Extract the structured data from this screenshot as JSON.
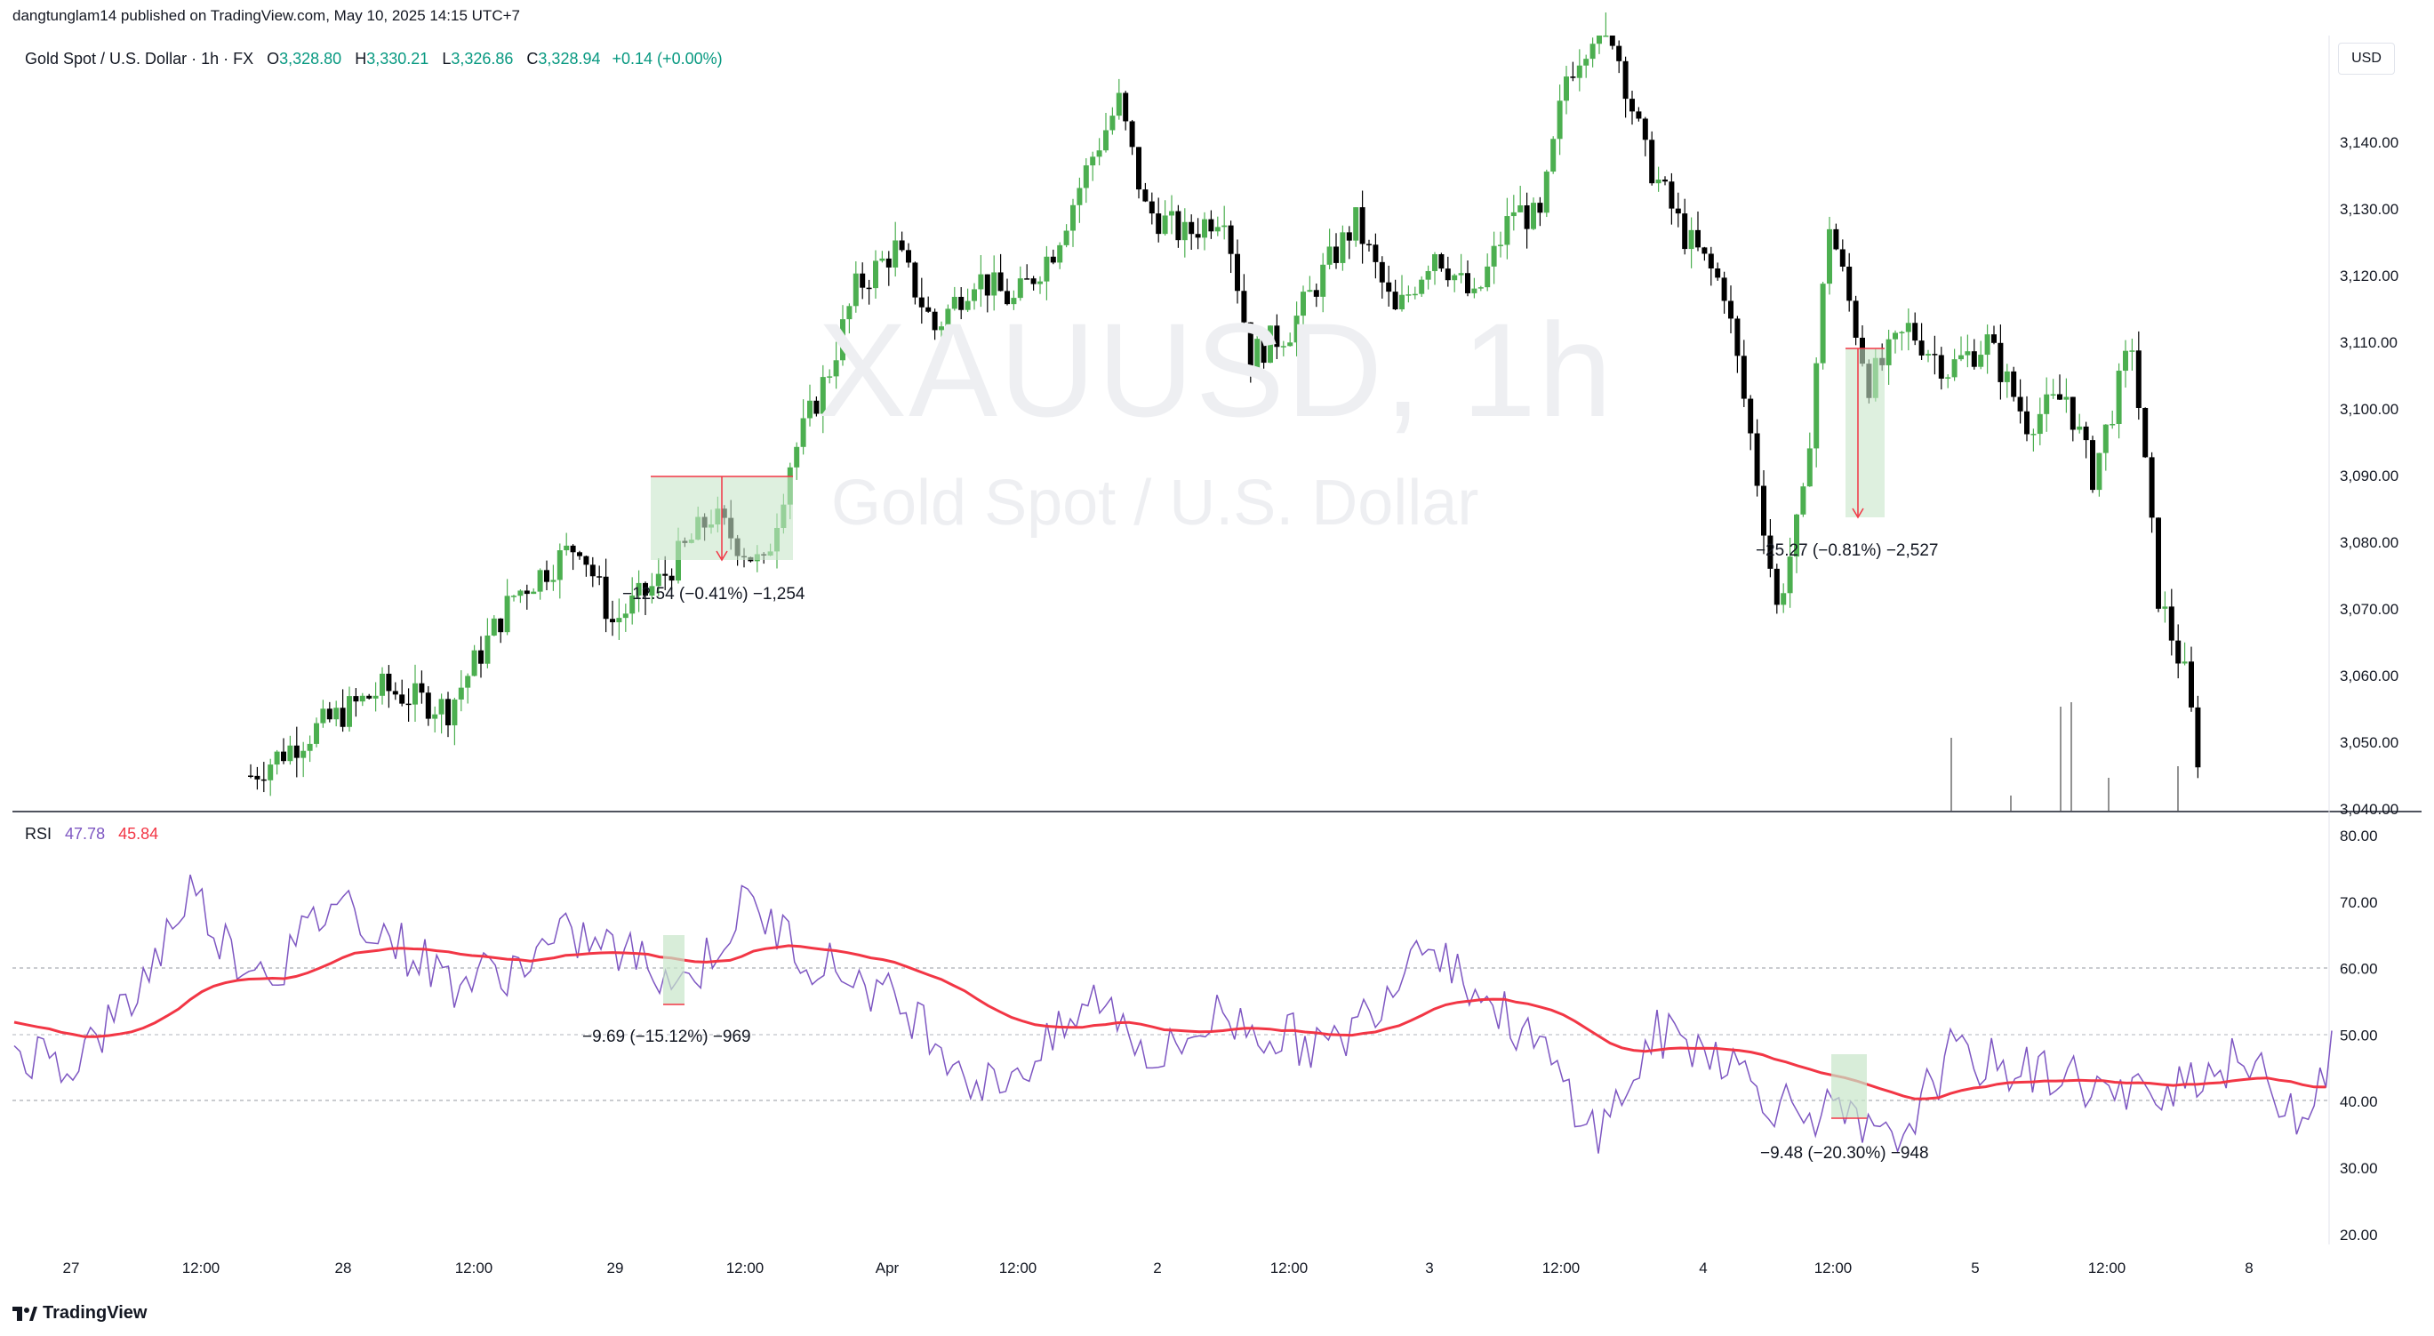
{
  "header": {
    "published": "dangtunglam14 published on TradingView.com, May 10, 2025 14:15 UTC+7",
    "symbol_line": "Gold Spot / U.S. Dollar · 1h · FX",
    "open_label": "O",
    "open": "3,328.80",
    "high_label": "H",
    "high": "3,330.21",
    "low_label": "L",
    "low": "3,326.86",
    "close_label": "C",
    "close": "3,328.94",
    "change": "+0.14 (+0.00%)"
  },
  "currency": "USD",
  "watermark": {
    "symbol": "XAUUSD, 1h",
    "name": "Gold Spot / U.S. Dollar"
  },
  "price_axis": [
    "3,140.00",
    "3,130.00",
    "3,120.00",
    "3,110.00",
    "3,100.00",
    "3,090.00",
    "3,080.00",
    "3,070.00",
    "3,060.00",
    "3,050.00",
    "3,040.00"
  ],
  "rsi_legend": {
    "label": "RSI",
    "value1": "47.78",
    "value2": "45.84"
  },
  "rsi_axis": [
    "80.00",
    "70.00",
    "60.00",
    "50.00",
    "40.00",
    "30.00",
    "20.00"
  ],
  "time_axis": [
    "27",
    "12:00",
    "28",
    "12:00",
    "29",
    "12:00",
    "Apr",
    "12:00",
    "2",
    "12:00",
    "3",
    "12:00",
    "4",
    "12:00",
    "5",
    "12:00",
    "8"
  ],
  "annotations": {
    "price_measure_1": "−12.54 (−0.41%) −1,254",
    "price_measure_2": "−25.27 (−0.81%) −2,527",
    "rsi_measure_1": "−9.69 (−15.12%) −969",
    "rsi_measure_2": "−9.48 (−20.30%) −948"
  },
  "footer": {
    "brand": "TradingView"
  },
  "colors": {
    "up": "#4caf50",
    "down": "#000000",
    "rsi": "#7e57c2",
    "rsi_ma": "#f23645",
    "measure_fill": "#c8e6c9"
  }
}
